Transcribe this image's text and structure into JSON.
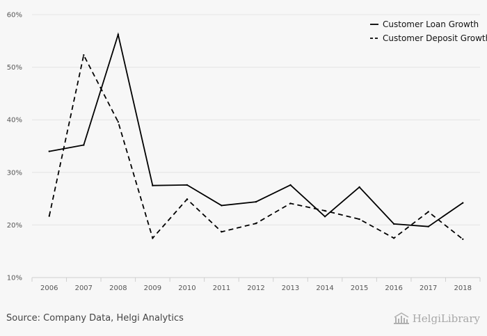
{
  "chart_data": {
    "type": "line",
    "x": [
      "2006",
      "2007",
      "2008",
      "2009",
      "2010",
      "2011",
      "2012",
      "2013",
      "2014",
      "2015",
      "2016",
      "2017",
      "2018"
    ],
    "ylim": [
      10,
      60
    ],
    "yticks": [
      10,
      20,
      30,
      40,
      50,
      60
    ],
    "ytick_labels": [
      "10%",
      "20%",
      "30%",
      "40%",
      "50%",
      "60%"
    ],
    "grid": true,
    "legend_position": "top-right",
    "series": [
      {
        "name": "Customer Loan Growth",
        "style": "solid",
        "color": "#000000",
        "values": [
          34.0,
          35.2,
          56.2,
          27.5,
          27.6,
          23.7,
          24.4,
          27.6,
          21.6,
          27.2,
          20.2,
          19.7,
          24.2
        ]
      },
      {
        "name": "Customer Deposit Growth",
        "style": "dashed",
        "color": "#000000",
        "values": [
          21.7,
          52.3,
          39.6,
          17.5,
          24.9,
          18.7,
          20.3,
          24.1,
          22.7,
          21.1,
          17.5,
          22.5,
          17.3
        ]
      }
    ]
  },
  "footer": {
    "source": "Source: Company Data, Helgi Analytics",
    "logo_text": "HelgiLibrary"
  }
}
